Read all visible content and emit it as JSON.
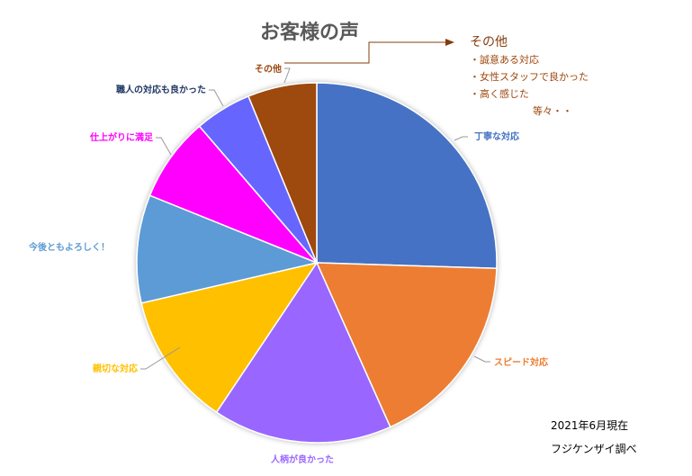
{
  "chart_data": {
    "type": "pie",
    "title": "お客様の声",
    "start": "12 o'clock, clockwise",
    "slices": [
      {
        "label": "丁寧な対応",
        "value": 25.5,
        "color": "#4472C4"
      },
      {
        "label": "スピード対応",
        "value": 17.8,
        "color": "#ED7D31"
      },
      {
        "label": "人柄が良かった",
        "value": 16.1,
        "color": "#9966FF"
      },
      {
        "label": "親切な対応",
        "value": 12.0,
        "color": "#FFC000"
      },
      {
        "label": "今後ともよろしく！",
        "value": 9.7,
        "color": "#5B9BD5"
      },
      {
        "label": "仕上がりに満足",
        "value": 7.6,
        "color": "#FF00FF"
      },
      {
        "label": "職人の対応も良かった",
        "value": 5.1,
        "color": "#6666FF"
      },
      {
        "label": "その他",
        "value": 6.2,
        "color": "#9E480E"
      }
    ],
    "label_colors": [
      "#4472C4",
      "#ED7D31",
      "#9966FF",
      "#FFC000",
      "#5B9BD5",
      "#FF00FF",
      "#203864",
      "#9E480E"
    ],
    "legend": "none"
  },
  "annotation": {
    "heading": "その他",
    "items": [
      "・誠意ある対応",
      "・女性スタッフで良かった",
      "・高く感じた"
    ],
    "etc": "等々・・"
  },
  "footer": {
    "date": "2021年6月現在",
    "source": "フジケンザイ調べ"
  }
}
